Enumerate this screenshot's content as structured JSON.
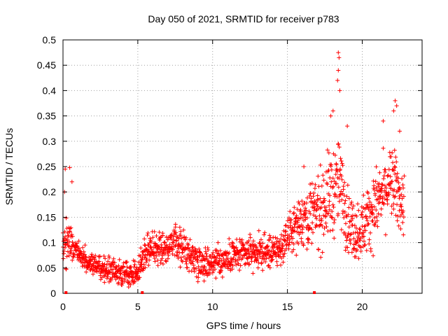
{
  "chart_data": {
    "type": "scatter",
    "title": "Day 050 of 2021, SRMTID for receiver p783",
    "xlabel": "GPS time / hours",
    "ylabel": "SRMTID / TECUs",
    "xlim": [
      0,
      24
    ],
    "ylim": [
      0,
      0.5
    ],
    "grid": true,
    "marker": "+",
    "color": "#ff0000",
    "x_ticks": [
      0,
      5,
      10,
      15,
      20
    ],
    "x_tick_labels": [
      "0",
      "5",
      "10",
      "15",
      "20"
    ],
    "y_ticks": [
      0,
      0.05,
      0.1,
      0.15,
      0.2,
      0.25,
      0.3,
      0.35,
      0.4,
      0.45,
      0.5
    ],
    "y_tick_labels": [
      "0",
      "0.05",
      "0.1",
      "0.15",
      "0.2",
      "0.25",
      "0.3",
      "0.35",
      "0.4",
      "0.45",
      "0.5"
    ],
    "trend": [
      {
        "x": 0.0,
        "y": 0.1
      },
      {
        "x": 0.5,
        "y": 0.1
      },
      {
        "x": 1.0,
        "y": 0.075
      },
      {
        "x": 2.0,
        "y": 0.055
      },
      {
        "x": 3.0,
        "y": 0.045
      },
      {
        "x": 4.0,
        "y": 0.04
      },
      {
        "x": 5.0,
        "y": 0.04
      },
      {
        "x": 5.5,
        "y": 0.085
      },
      {
        "x": 6.5,
        "y": 0.09
      },
      {
        "x": 7.5,
        "y": 0.1
      },
      {
        "x": 8.5,
        "y": 0.075
      },
      {
        "x": 9.5,
        "y": 0.06
      },
      {
        "x": 10.5,
        "y": 0.065
      },
      {
        "x": 11.5,
        "y": 0.075
      },
      {
        "x": 12.5,
        "y": 0.08
      },
      {
        "x": 13.5,
        "y": 0.08
      },
      {
        "x": 14.5,
        "y": 0.085
      },
      {
        "x": 15.2,
        "y": 0.12
      },
      {
        "x": 16.0,
        "y": 0.15
      },
      {
        "x": 17.0,
        "y": 0.16
      },
      {
        "x": 18.0,
        "y": 0.2
      },
      {
        "x": 18.5,
        "y": 0.22
      },
      {
        "x": 19.0,
        "y": 0.15
      },
      {
        "x": 19.5,
        "y": 0.12
      },
      {
        "x": 20.0,
        "y": 0.13
      },
      {
        "x": 21.0,
        "y": 0.18
      },
      {
        "x": 22.0,
        "y": 0.22
      },
      {
        "x": 22.8,
        "y": 0.17
      }
    ],
    "spread": [
      {
        "x": 0.0,
        "s": 0.04
      },
      {
        "x": 1.0,
        "s": 0.02
      },
      {
        "x": 5.0,
        "s": 0.02
      },
      {
        "x": 5.5,
        "s": 0.03
      },
      {
        "x": 8.0,
        "s": 0.03
      },
      {
        "x": 12.0,
        "s": 0.025
      },
      {
        "x": 15.0,
        "s": 0.03
      },
      {
        "x": 16.0,
        "s": 0.05
      },
      {
        "x": 18.0,
        "s": 0.08
      },
      {
        "x": 19.5,
        "s": 0.05
      },
      {
        "x": 21.0,
        "s": 0.06
      },
      {
        "x": 22.8,
        "s": 0.06
      }
    ],
    "x_range_points": [
      0.0,
      22.8
    ],
    "point_count": 1600,
    "outliers": [
      {
        "x": 18.4,
        "y": 0.475
      },
      {
        "x": 18.45,
        "y": 0.465
      },
      {
        "x": 18.4,
        "y": 0.44
      },
      {
        "x": 18.35,
        "y": 0.42
      },
      {
        "x": 18.5,
        "y": 0.4
      },
      {
        "x": 17.9,
        "y": 0.35
      },
      {
        "x": 18.05,
        "y": 0.36
      },
      {
        "x": 22.2,
        "y": 0.38
      },
      {
        "x": 22.3,
        "y": 0.37
      },
      {
        "x": 22.1,
        "y": 0.36
      },
      {
        "x": 21.4,
        "y": 0.34
      },
      {
        "x": 19.0,
        "y": 0.33
      },
      {
        "x": 22.5,
        "y": 0.32
      },
      {
        "x": 0.15,
        "y": 0.245
      },
      {
        "x": 0.45,
        "y": 0.248
      },
      {
        "x": 16.1,
        "y": 0.25
      },
      {
        "x": 0.6,
        "y": 0.22
      },
      {
        "x": 0.1,
        "y": 0.2
      }
    ],
    "axis_markers_x": [
      0.2,
      5.3,
      16.8
    ]
  }
}
